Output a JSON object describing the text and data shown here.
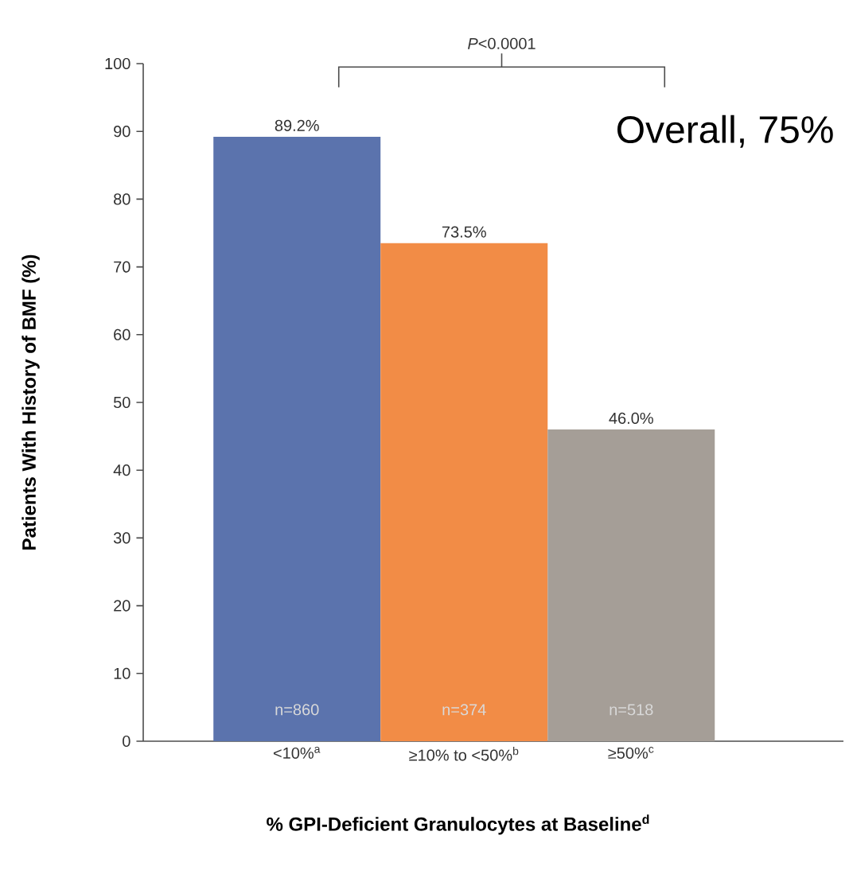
{
  "chart_data": {
    "type": "bar",
    "xlabel": "% GPI-Deficient Granulocytes at Baseline$^{d}$",
    "ylabel": "Patients With History of BMF (%)",
    "categories": [
      "<10%$^{a}$",
      "≥10% to <50%$^{b}$",
      "≥50%$^{c}$"
    ],
    "values": [
      89.2,
      73.5,
      46.0
    ],
    "colors": [
      "#5b73ad",
      "#f28c46",
      "#a59e97"
    ],
    "value_labels": [
      "89.2%",
      "73.5%",
      "46.0%"
    ],
    "ylim": [
      0,
      100
    ],
    "yticks": [
      0,
      10,
      20,
      30,
      40,
      50,
      60,
      70,
      80,
      90,
      100
    ],
    "annotations": [
      "*P*<0.0001",
      "Overall, 75%",
      "n=860",
      "n=374",
      "n=518"
    ],
    "grid": false
  }
}
